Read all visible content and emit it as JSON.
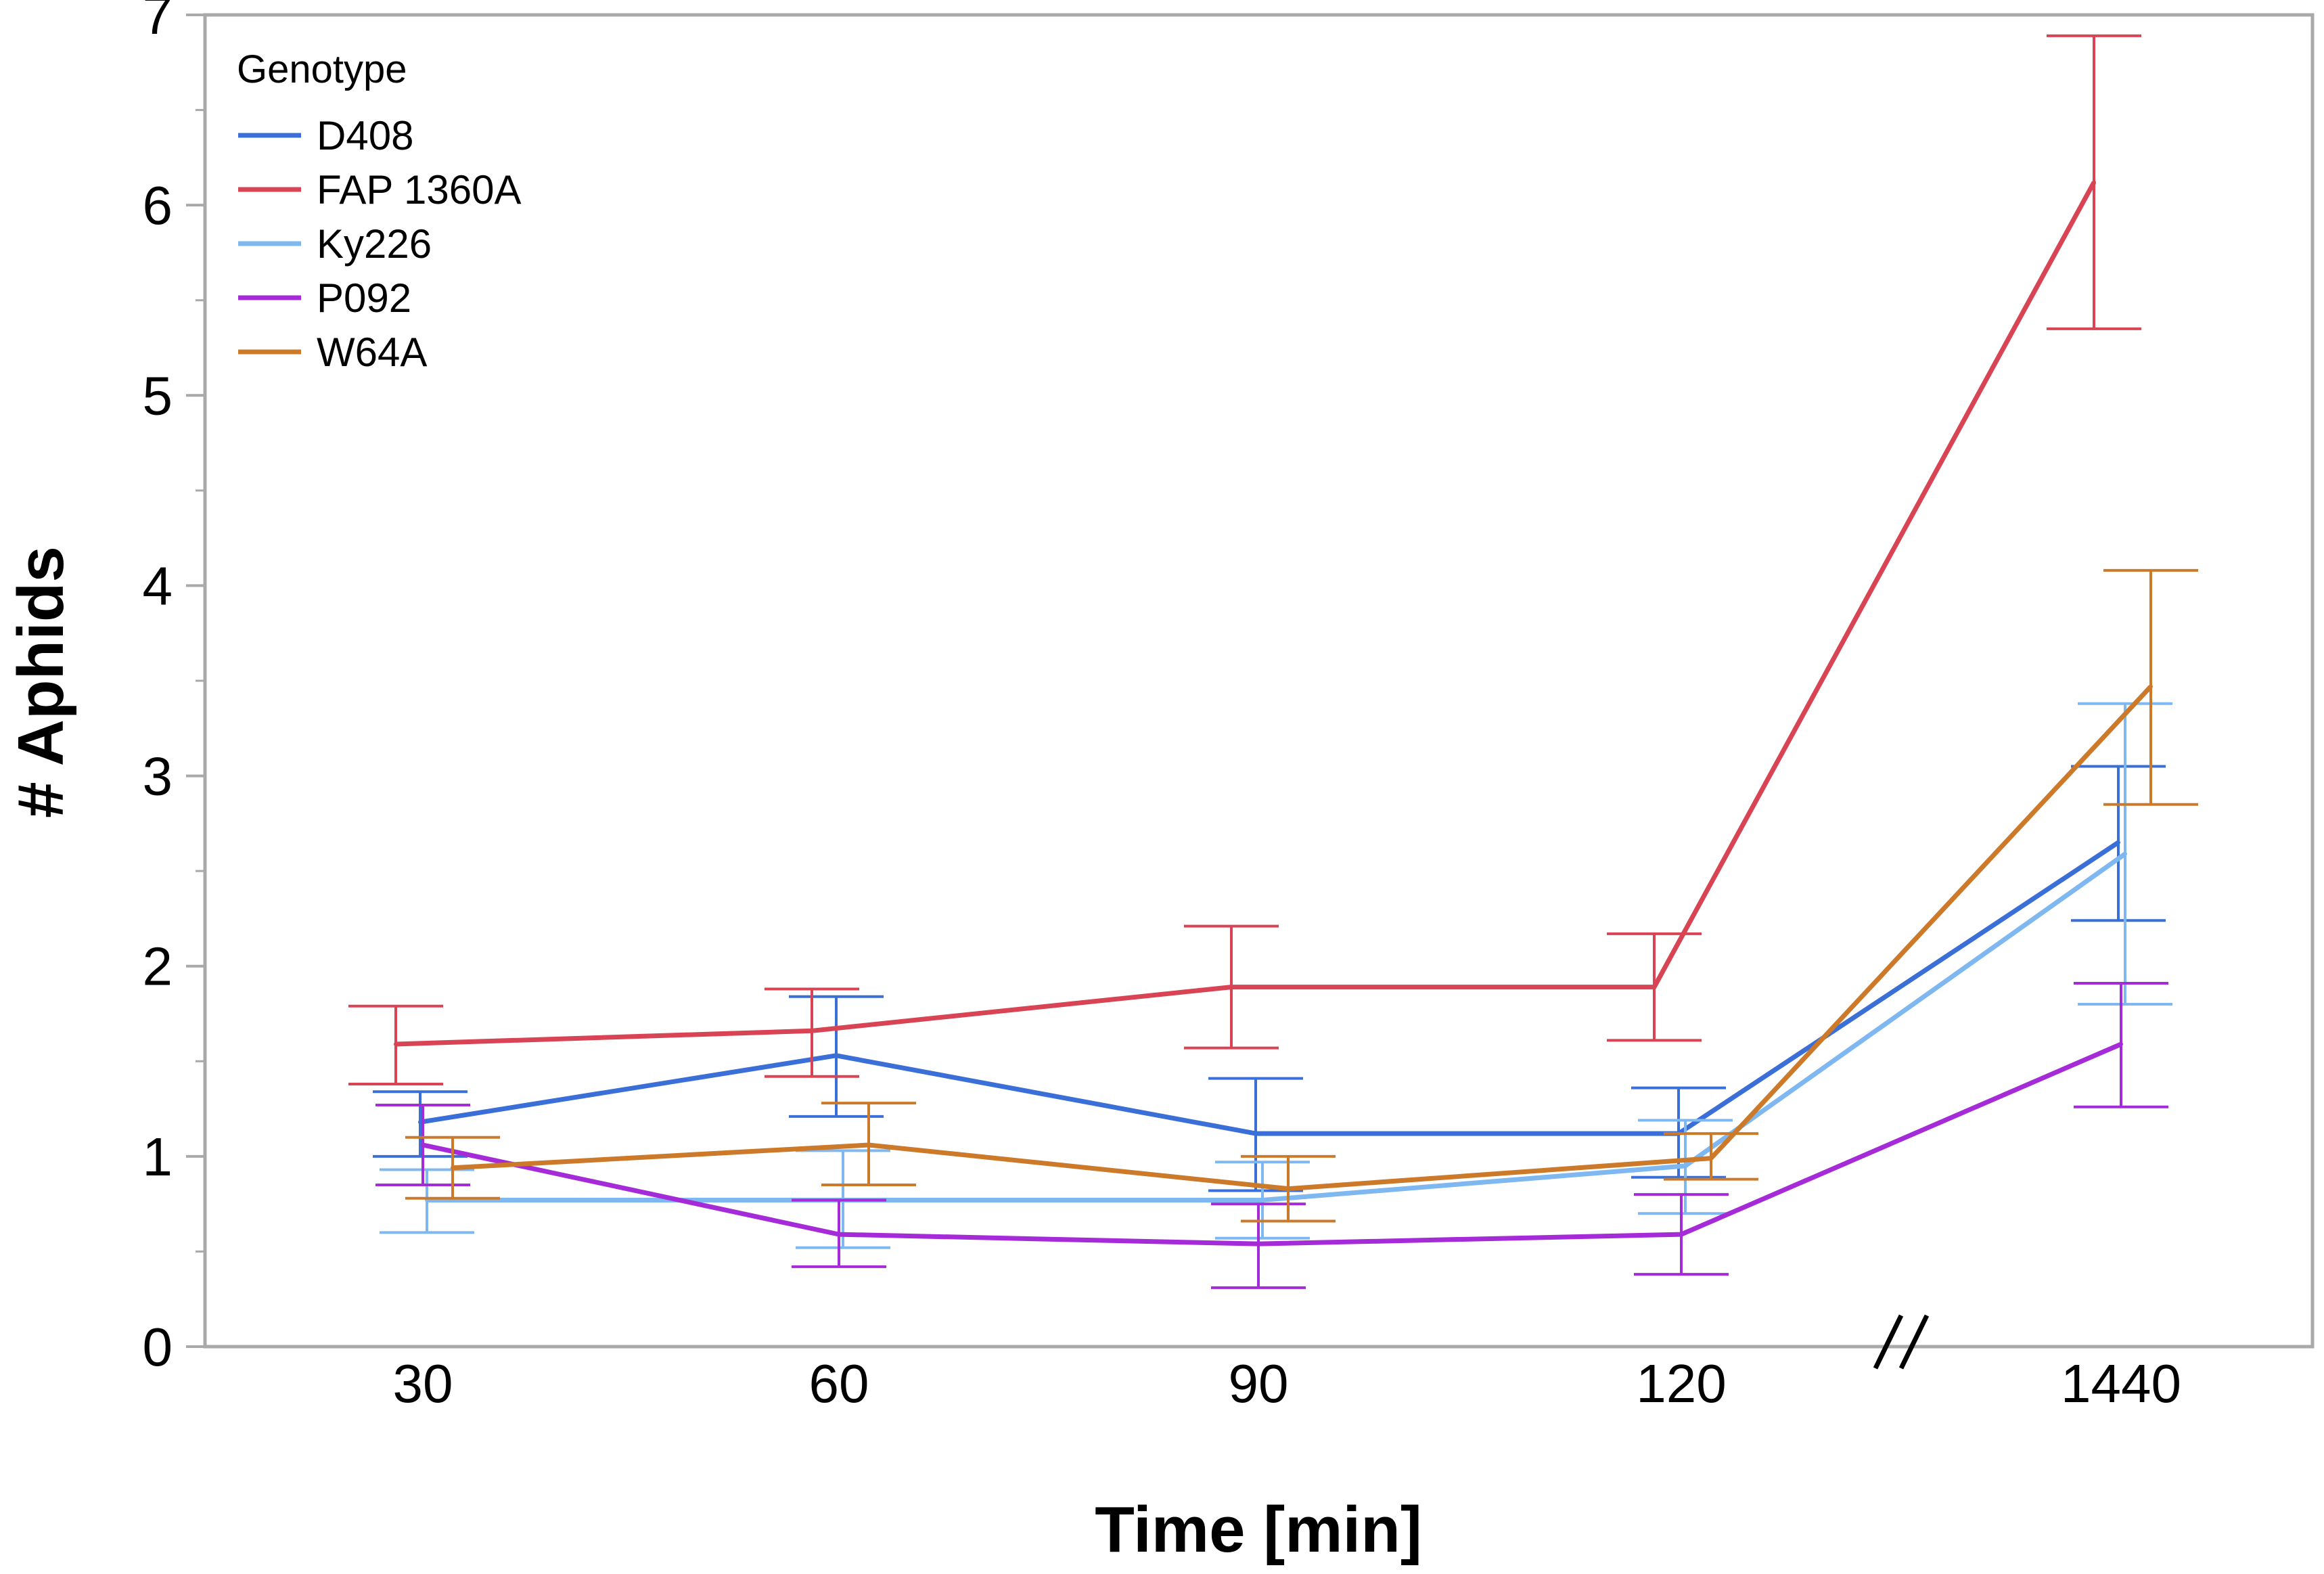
{
  "chart_data": {
    "type": "line",
    "title": "",
    "xlabel": "Time [min]",
    "ylabel": "# Aphids",
    "categories": [
      "30",
      "60",
      "90",
      "120",
      "1440"
    ],
    "axis_break_between": [
      "120",
      "1440"
    ],
    "axis_break_symbol": "//",
    "ylim": [
      0,
      7
    ],
    "yticks": [
      "0",
      "1",
      "2",
      "3",
      "4",
      "5",
      "6",
      "7"
    ],
    "grid": false,
    "error_bars": true,
    "legend": {
      "title": "Genotype",
      "position": "top-left"
    },
    "series": [
      {
        "name": "D408",
        "color": "#3b6fd8",
        "values": [
          1.18,
          1.53,
          1.12,
          1.12,
          2.65
        ],
        "lower": [
          1.0,
          1.21,
          0.82,
          0.89,
          2.24
        ],
        "upper": [
          1.34,
          1.84,
          1.41,
          1.36,
          3.05
        ]
      },
      {
        "name": "FAP 1360A",
        "color": "#d94455",
        "values": [
          1.59,
          1.66,
          1.89,
          1.89,
          6.12
        ],
        "lower": [
          1.38,
          1.42,
          1.57,
          1.61,
          5.35
        ],
        "upper": [
          1.79,
          1.88,
          2.21,
          2.17,
          6.89
        ]
      },
      {
        "name": "Ky226",
        "color": "#7fb8f0",
        "values": [
          0.77,
          0.77,
          0.77,
          0.95,
          2.59
        ],
        "lower": [
          0.6,
          0.52,
          0.57,
          0.7,
          1.8
        ],
        "upper": [
          0.93,
          1.03,
          0.97,
          1.19,
          3.38
        ]
      },
      {
        "name": "P092",
        "color": "#a52ad8",
        "values": [
          1.06,
          0.59,
          0.54,
          0.59,
          1.59
        ],
        "lower": [
          0.85,
          0.42,
          0.31,
          0.38,
          1.26
        ],
        "upper": [
          1.27,
          0.77,
          0.75,
          0.8,
          1.91
        ]
      },
      {
        "name": "W64A",
        "color": "#cc7a2a",
        "values": [
          0.94,
          1.06,
          0.83,
          0.99,
          3.47
        ],
        "lower": [
          0.78,
          0.85,
          0.66,
          0.88,
          2.85
        ],
        "upper": [
          1.1,
          1.28,
          1.0,
          1.12,
          4.08
        ]
      }
    ]
  }
}
